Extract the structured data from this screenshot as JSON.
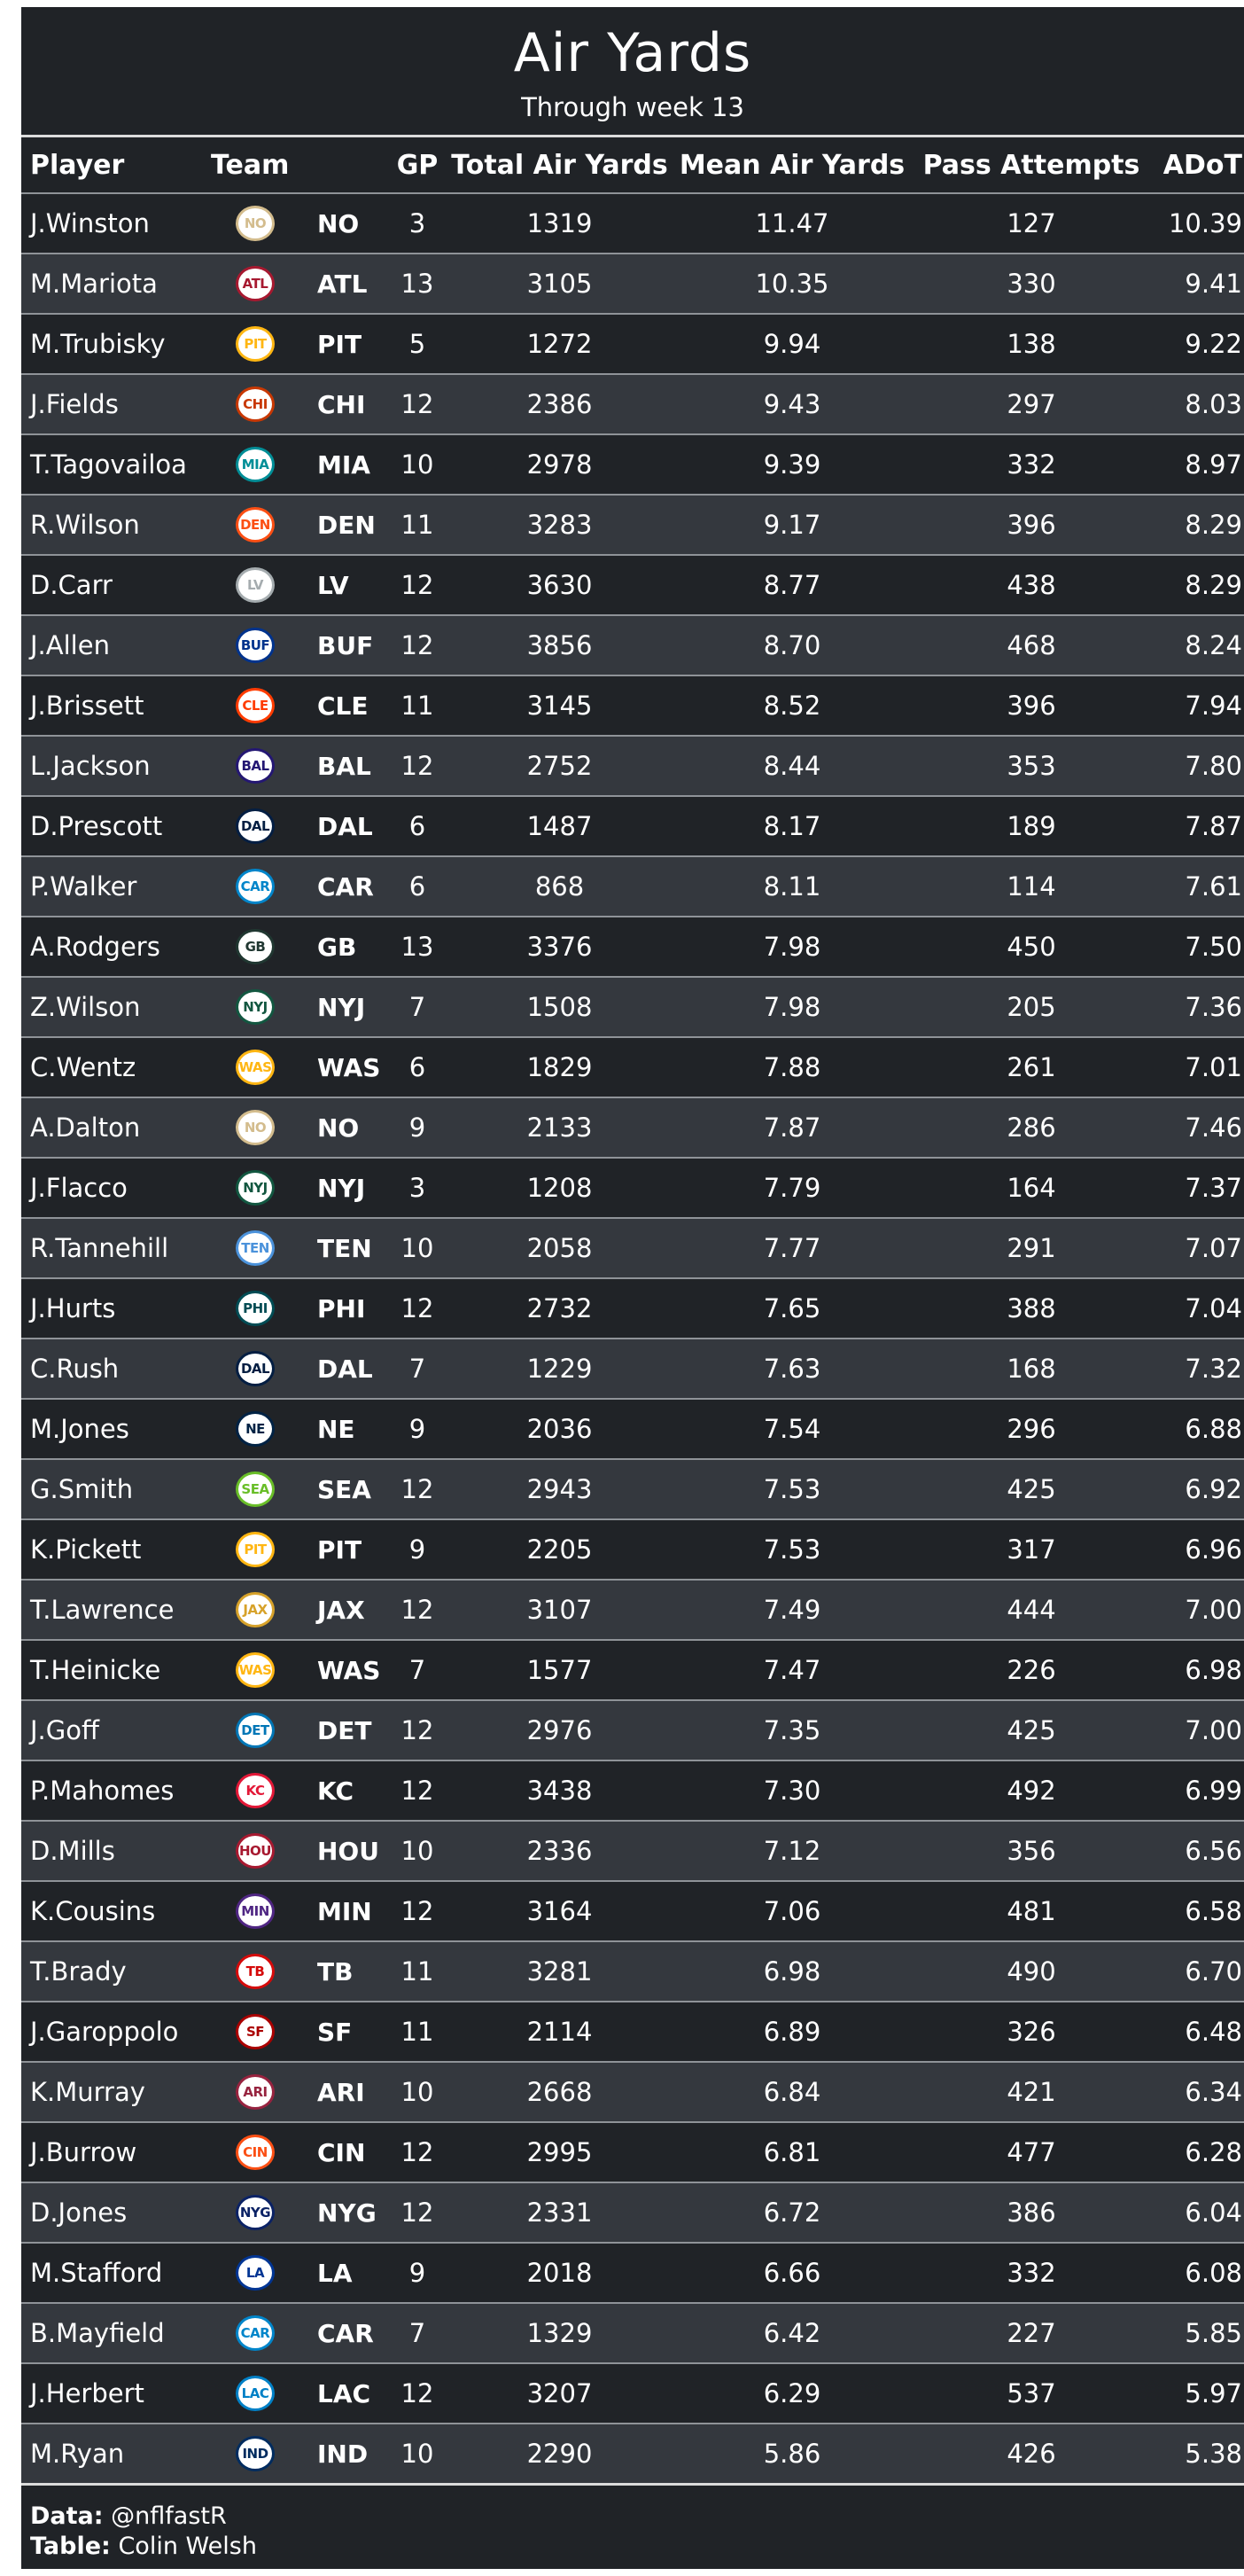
{
  "title": "Air Yards",
  "subtitle": "Through week 13",
  "columns": {
    "player": "Player",
    "team": "Team",
    "gp": "GP",
    "total_air_yards": "Total Air Yards",
    "mean_air_yards": "Mean Air Yards",
    "pass_attempts": "Pass Attempts",
    "adot": "ADoT"
  },
  "rows": [
    {
      "player": "J.Winston",
      "team": "NO",
      "gp": "3",
      "total": "1319",
      "mean": "11.47",
      "pass": "127",
      "adot": "10.39",
      "logo_icon": "saints-logo-icon",
      "logo_color": "#d3bc8d"
    },
    {
      "player": "M.Mariota",
      "team": "ATL",
      "gp": "13",
      "total": "3105",
      "mean": "10.35",
      "pass": "330",
      "adot": "9.41",
      "logo_icon": "falcons-logo-icon",
      "logo_color": "#a71930"
    },
    {
      "player": "M.Trubisky",
      "team": "PIT",
      "gp": "5",
      "total": "1272",
      "mean": "9.94",
      "pass": "138",
      "adot": "9.22",
      "logo_icon": "steelers-logo-icon",
      "logo_color": "#ffb612"
    },
    {
      "player": "J.Fields",
      "team": "CHI",
      "gp": "12",
      "total": "2386",
      "mean": "9.43",
      "pass": "297",
      "adot": "8.03",
      "logo_icon": "bears-logo-icon",
      "logo_color": "#c83803"
    },
    {
      "player": "T.Tagovailoa",
      "team": "MIA",
      "gp": "10",
      "total": "2978",
      "mean": "9.39",
      "pass": "332",
      "adot": "8.97",
      "logo_icon": "dolphins-logo-icon",
      "logo_color": "#008e97"
    },
    {
      "player": "R.Wilson",
      "team": "DEN",
      "gp": "11",
      "total": "3283",
      "mean": "9.17",
      "pass": "396",
      "adot": "8.29",
      "logo_icon": "broncos-logo-icon",
      "logo_color": "#fb4f14"
    },
    {
      "player": "D.Carr",
      "team": "LV",
      "gp": "12",
      "total": "3630",
      "mean": "8.77",
      "pass": "438",
      "adot": "8.29",
      "logo_icon": "raiders-logo-icon",
      "logo_color": "#a5acaf"
    },
    {
      "player": "J.Allen",
      "team": "BUF",
      "gp": "12",
      "total": "3856",
      "mean": "8.70",
      "pass": "468",
      "adot": "8.24",
      "logo_icon": "bills-logo-icon",
      "logo_color": "#00338d"
    },
    {
      "player": "J.Brissett",
      "team": "CLE",
      "gp": "11",
      "total": "3145",
      "mean": "8.52",
      "pass": "396",
      "adot": "7.94",
      "logo_icon": "browns-logo-icon",
      "logo_color": "#ff3c00"
    },
    {
      "player": "L.Jackson",
      "team": "BAL",
      "gp": "12",
      "total": "2752",
      "mean": "8.44",
      "pass": "353",
      "adot": "7.80",
      "logo_icon": "ravens-logo-icon",
      "logo_color": "#241773"
    },
    {
      "player": "D.Prescott",
      "team": "DAL",
      "gp": "6",
      "total": "1487",
      "mean": "8.17",
      "pass": "189",
      "adot": "7.87",
      "logo_icon": "cowboys-logo-icon",
      "logo_color": "#041e42"
    },
    {
      "player": "P.Walker",
      "team": "CAR",
      "gp": "6",
      "total": "868",
      "mean": "8.11",
      "pass": "114",
      "adot": "7.61",
      "logo_icon": "panthers-logo-icon",
      "logo_color": "#0085ca"
    },
    {
      "player": "A.Rodgers",
      "team": "GB",
      "gp": "13",
      "total": "3376",
      "mean": "7.98",
      "pass": "450",
      "adot": "7.50",
      "logo_icon": "packers-logo-icon",
      "logo_color": "#203731"
    },
    {
      "player": "Z.Wilson",
      "team": "NYJ",
      "gp": "7",
      "total": "1508",
      "mean": "7.98",
      "pass": "205",
      "adot": "7.36",
      "logo_icon": "jets-logo-icon",
      "logo_color": "#125740"
    },
    {
      "player": "C.Wentz",
      "team": "WAS",
      "gp": "6",
      "total": "1829",
      "mean": "7.88",
      "pass": "261",
      "adot": "7.01",
      "logo_icon": "commanders-logo-icon",
      "logo_color": "#ffb612"
    },
    {
      "player": "A.Dalton",
      "team": "NO",
      "gp": "9",
      "total": "2133",
      "mean": "7.87",
      "pass": "286",
      "adot": "7.46",
      "logo_icon": "saints-logo-icon",
      "logo_color": "#d3bc8d"
    },
    {
      "player": "J.Flacco",
      "team": "NYJ",
      "gp": "3",
      "total": "1208",
      "mean": "7.79",
      "pass": "164",
      "adot": "7.37",
      "logo_icon": "jets-logo-icon",
      "logo_color": "#125740"
    },
    {
      "player": "R.Tannehill",
      "team": "TEN",
      "gp": "10",
      "total": "2058",
      "mean": "7.77",
      "pass": "291",
      "adot": "7.07",
      "logo_icon": "titans-logo-icon",
      "logo_color": "#4b92db"
    },
    {
      "player": "J.Hurts",
      "team": "PHI",
      "gp": "12",
      "total": "2732",
      "mean": "7.65",
      "pass": "388",
      "adot": "7.04",
      "logo_icon": "eagles-logo-icon",
      "logo_color": "#004c54"
    },
    {
      "player": "C.Rush",
      "team": "DAL",
      "gp": "7",
      "total": "1229",
      "mean": "7.63",
      "pass": "168",
      "adot": "7.32",
      "logo_icon": "cowboys-logo-icon",
      "logo_color": "#041e42"
    },
    {
      "player": "M.Jones",
      "team": "NE",
      "gp": "9",
      "total": "2036",
      "mean": "7.54",
      "pass": "296",
      "adot": "6.88",
      "logo_icon": "patriots-logo-icon",
      "logo_color": "#002244"
    },
    {
      "player": "G.Smith",
      "team": "SEA",
      "gp": "12",
      "total": "2943",
      "mean": "7.53",
      "pass": "425",
      "adot": "6.92",
      "logo_icon": "seahawks-logo-icon",
      "logo_color": "#69be28"
    },
    {
      "player": "K.Pickett",
      "team": "PIT",
      "gp": "9",
      "total": "2205",
      "mean": "7.53",
      "pass": "317",
      "adot": "6.96",
      "logo_icon": "steelers-logo-icon",
      "logo_color": "#ffb612"
    },
    {
      "player": "T.Lawrence",
      "team": "JAX",
      "gp": "12",
      "total": "3107",
      "mean": "7.49",
      "pass": "444",
      "adot": "7.00",
      "logo_icon": "jaguars-logo-icon",
      "logo_color": "#d7a22a"
    },
    {
      "player": "T.Heinicke",
      "team": "WAS",
      "gp": "7",
      "total": "1577",
      "mean": "7.47",
      "pass": "226",
      "adot": "6.98",
      "logo_icon": "commanders-logo-icon",
      "logo_color": "#ffb612"
    },
    {
      "player": "J.Goff",
      "team": "DET",
      "gp": "12",
      "total": "2976",
      "mean": "7.35",
      "pass": "425",
      "adot": "7.00",
      "logo_icon": "lions-logo-icon",
      "logo_color": "#0076b6"
    },
    {
      "player": "P.Mahomes",
      "team": "KC",
      "gp": "12",
      "total": "3438",
      "mean": "7.30",
      "pass": "492",
      "adot": "6.99",
      "logo_icon": "chiefs-logo-icon",
      "logo_color": "#e31837"
    },
    {
      "player": "D.Mills",
      "team": "HOU",
      "gp": "10",
      "total": "2336",
      "mean": "7.12",
      "pass": "356",
      "adot": "6.56",
      "logo_icon": "texans-logo-icon",
      "logo_color": "#a71930"
    },
    {
      "player": "K.Cousins",
      "team": "MIN",
      "gp": "12",
      "total": "3164",
      "mean": "7.06",
      "pass": "481",
      "adot": "6.58",
      "logo_icon": "vikings-logo-icon",
      "logo_color": "#4f2683"
    },
    {
      "player": "T.Brady",
      "team": "TB",
      "gp": "11",
      "total": "3281",
      "mean": "6.98",
      "pass": "490",
      "adot": "6.70",
      "logo_icon": "buccaneers-logo-icon",
      "logo_color": "#d50a0a"
    },
    {
      "player": "J.Garoppolo",
      "team": "SF",
      "gp": "11",
      "total": "2114",
      "mean": "6.89",
      "pass": "326",
      "adot": "6.48",
      "logo_icon": "49ers-logo-icon",
      "logo_color": "#aa0000"
    },
    {
      "player": "K.Murray",
      "team": "ARI",
      "gp": "10",
      "total": "2668",
      "mean": "6.84",
      "pass": "421",
      "adot": "6.34",
      "logo_icon": "cardinals-logo-icon",
      "logo_color": "#97233f"
    },
    {
      "player": "J.Burrow",
      "team": "CIN",
      "gp": "12",
      "total": "2995",
      "mean": "6.81",
      "pass": "477",
      "adot": "6.28",
      "logo_icon": "bengals-logo-icon",
      "logo_color": "#fb4f14"
    },
    {
      "player": "D.Jones",
      "team": "NYG",
      "gp": "12",
      "total": "2331",
      "mean": "6.72",
      "pass": "386",
      "adot": "6.04",
      "logo_icon": "giants-logo-icon",
      "logo_color": "#0b2265"
    },
    {
      "player": "M.Stafford",
      "team": "LA",
      "gp": "9",
      "total": "2018",
      "mean": "6.66",
      "pass": "332",
      "adot": "6.08",
      "logo_icon": "rams-logo-icon",
      "logo_color": "#003594"
    },
    {
      "player": "B.Mayfield",
      "team": "CAR",
      "gp": "7",
      "total": "1329",
      "mean": "6.42",
      "pass": "227",
      "adot": "5.85",
      "logo_icon": "panthers-logo-icon",
      "logo_color": "#0085ca"
    },
    {
      "player": "J.Herbert",
      "team": "LAC",
      "gp": "12",
      "total": "3207",
      "mean": "6.29",
      "pass": "537",
      "adot": "5.97",
      "logo_icon": "chargers-logo-icon",
      "logo_color": "#0080c6"
    },
    {
      "player": "M.Ryan",
      "team": "IND",
      "gp": "10",
      "total": "2290",
      "mean": "5.86",
      "pass": "426",
      "adot": "5.38",
      "logo_icon": "colts-logo-icon",
      "logo_color": "#002c5f"
    }
  ],
  "footer": {
    "data_label": "Data:",
    "data_value": "@nflfastR",
    "table_label": "Table:",
    "table_value": "Colin Welsh"
  }
}
